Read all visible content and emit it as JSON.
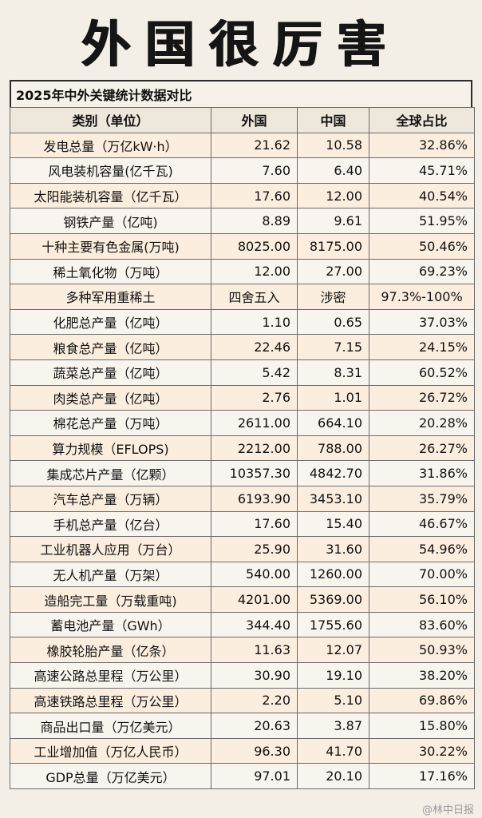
{
  "title": "外国很厉害",
  "subtitle": "2025年中外关键统计数据对比",
  "headers": [
    "类别（单位）",
    "外国",
    "中国",
    "全球占比"
  ],
  "rows": [
    [
      "发电总量（万亿kW·h）",
      "21.62",
      "10.58",
      "32.86%"
    ],
    [
      "风电装机容量(亿千瓦)",
      "7.60",
      "6.40",
      "45.71%"
    ],
    [
      "太阳能装机容量（亿千瓦）",
      "17.60",
      "12.00",
      "40.54%"
    ],
    [
      "钢铁产量（亿吨)",
      "8.89",
      "9.61",
      "51.95%"
    ],
    [
      "十种主要有色金属(万吨)",
      "8025.00",
      "8175.00",
      "50.46%"
    ],
    [
      "稀土氧化物（万吨）",
      "12.00",
      "27.00",
      "69.23%"
    ],
    [
      "多种军用重稀土",
      "四舍五入",
      "涉密",
      "97.3%-100%"
    ],
    [
      "化肥总产量（亿吨）",
      "1.10",
      "0.65",
      "37.03%"
    ],
    [
      "粮食总产量（亿吨）",
      "22.46",
      "7.15",
      "24.15%"
    ],
    [
      "蔬菜总产量（亿吨）",
      "5.42",
      "8.31",
      "60.52%"
    ],
    [
      "肉类总产量（亿吨）",
      "2.76",
      "1.01",
      "26.72%"
    ],
    [
      "棉花总产量（万吨）",
      "2611.00",
      "664.10",
      "20.28%"
    ],
    [
      "算力规模（EFLOPS)",
      "2212.00",
      "788.00",
      "26.27%"
    ],
    [
      "集成芯片产量（亿颗）",
      "10357.30",
      "4842.70",
      "31.86%"
    ],
    [
      "汽车总产量（万辆）",
      "6193.90",
      "3453.10",
      "35.79%"
    ],
    [
      "手机总产量（亿台）",
      "17.60",
      "15.40",
      "46.67%"
    ],
    [
      "工业机器人应用（万台）",
      "25.90",
      "31.60",
      "54.96%"
    ],
    [
      "无人机产量（万架）",
      "540.00",
      "1260.00",
      "70.00%"
    ],
    [
      "造船完工量（万载重吨)",
      "4201.00",
      "5369.00",
      "56.10%"
    ],
    [
      "蓄电池产量（GWh）",
      "344.40",
      "1755.60",
      "83.60%"
    ],
    [
      "橡胶轮胎产量（亿条）",
      "11.63",
      "12.07",
      "50.93%"
    ],
    [
      "高速公路总里程（万公里）",
      "30.90",
      "19.10",
      "38.20%"
    ],
    [
      "高速铁路总里程（万公里）",
      "2.20",
      "5.10",
      "69.86%"
    ],
    [
      "商品出口量（万亿美元）",
      "20.63",
      "3.87",
      "15.80%"
    ],
    [
      "工业增加值（万亿人民币）",
      "96.30",
      "41.70",
      "30.22%"
    ],
    [
      "GDP总量（万亿美元）",
      "97.01",
      "20.10",
      "17.16%"
    ]
  ],
  "watermark": "@林中日报"
}
